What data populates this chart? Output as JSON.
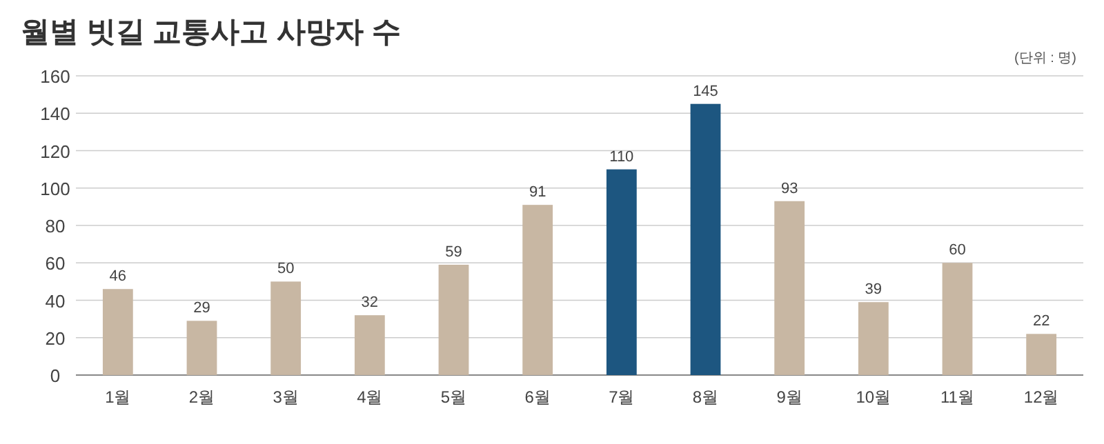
{
  "chart_data": {
    "type": "bar",
    "title": "월별 빗길 교통사고 사망자 수",
    "annotations": [
      "(단위 : 명)"
    ],
    "categories": [
      "1월",
      "2월",
      "3월",
      "4월",
      "5월",
      "6월",
      "7월",
      "8월",
      "9월",
      "10월",
      "11월",
      "12월"
    ],
    "values": [
      46,
      29,
      50,
      32,
      59,
      91,
      110,
      145,
      93,
      39,
      60,
      22
    ],
    "colors": [
      "#c8b7a3",
      "#c8b7a3",
      "#c8b7a3",
      "#c8b7a3",
      "#c8b7a3",
      "#c8b7a3",
      "#1d5680",
      "#1d5680",
      "#c8b7a3",
      "#c8b7a3",
      "#c8b7a3",
      "#c8b7a3"
    ],
    "ylim": [
      0,
      160
    ],
    "yticks": [
      0,
      20,
      40,
      60,
      80,
      100,
      120,
      140,
      160
    ],
    "grid": "y",
    "data_labels": true
  }
}
